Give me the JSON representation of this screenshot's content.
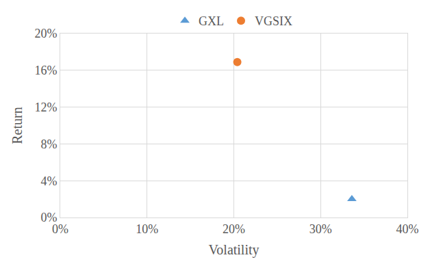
{
  "chart_data": {
    "type": "scatter",
    "x_label": "Volatility",
    "y_label": "Return",
    "series": [
      {
        "name": "GXL",
        "color": "#5b9bd5",
        "marker": "triangle",
        "x": [
          33.6
        ],
        "values": [
          2.0
        ]
      },
      {
        "name": "VGSIX",
        "color": "#ed7d31",
        "marker": "circle",
        "x": [
          20.4
        ],
        "values": [
          16.9
        ]
      }
    ],
    "xlim": [
      0,
      40
    ],
    "xticks": [
      {
        "value": 0,
        "label": "0%"
      },
      {
        "value": 10,
        "label": "10%"
      },
      {
        "value": 20,
        "label": "20%"
      },
      {
        "value": 30,
        "label": "30%"
      },
      {
        "value": 40,
        "label": "40%"
      }
    ],
    "ylim": [
      0,
      20
    ],
    "yticks": [
      {
        "value": 0,
        "label": "0%"
      },
      {
        "value": 4,
        "label": "4%"
      },
      {
        "value": 8,
        "label": "8%"
      },
      {
        "value": 12,
        "label": "12%"
      },
      {
        "value": 16,
        "label": "16%"
      },
      {
        "value": 20,
        "label": "20%"
      }
    ],
    "grid": true,
    "legend": "top"
  }
}
